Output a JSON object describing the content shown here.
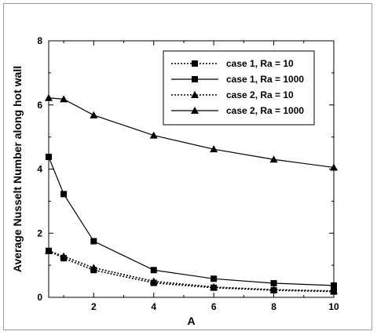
{
  "chart_data": {
    "type": "line",
    "xlabel": "A",
    "ylabel": "Average Nusselt Number along hot wall",
    "xlim": [
      0.5,
      10
    ],
    "ylim": [
      0,
      8
    ],
    "xticks": [
      2,
      4,
      6,
      8,
      10
    ],
    "yticks": [
      0,
      2,
      4,
      6,
      8
    ],
    "legend_position": "top-right",
    "series": [
      {
        "name": "case 1, Ra = 10",
        "marker": "square",
        "line": "dotted",
        "x": [
          0.5,
          1,
          2,
          4,
          6,
          8,
          10
        ],
        "y": [
          1.45,
          1.22,
          0.85,
          0.45,
          0.3,
          0.22,
          0.18
        ]
      },
      {
        "name": "case 1, Ra = 1000",
        "marker": "square",
        "line": "solid",
        "x": [
          0.5,
          1,
          2,
          4,
          6,
          8,
          10
        ],
        "y": [
          4.38,
          3.22,
          1.75,
          0.85,
          0.58,
          0.44,
          0.37
        ]
      },
      {
        "name": "case 2, Ra = 10",
        "marker": "triangle",
        "line": "dotted",
        "x": [
          0.5,
          1,
          2,
          4,
          6,
          8,
          10
        ],
        "y": [
          1.45,
          1.28,
          0.92,
          0.5,
          0.32,
          0.24,
          0.2
        ]
      },
      {
        "name": "case 2, Ra = 1000",
        "marker": "triangle",
        "line": "solid",
        "x": [
          0.5,
          1,
          2,
          4,
          6,
          8,
          10
        ],
        "y": [
          6.22,
          6.18,
          5.68,
          5.05,
          4.62,
          4.3,
          4.05
        ]
      }
    ]
  }
}
